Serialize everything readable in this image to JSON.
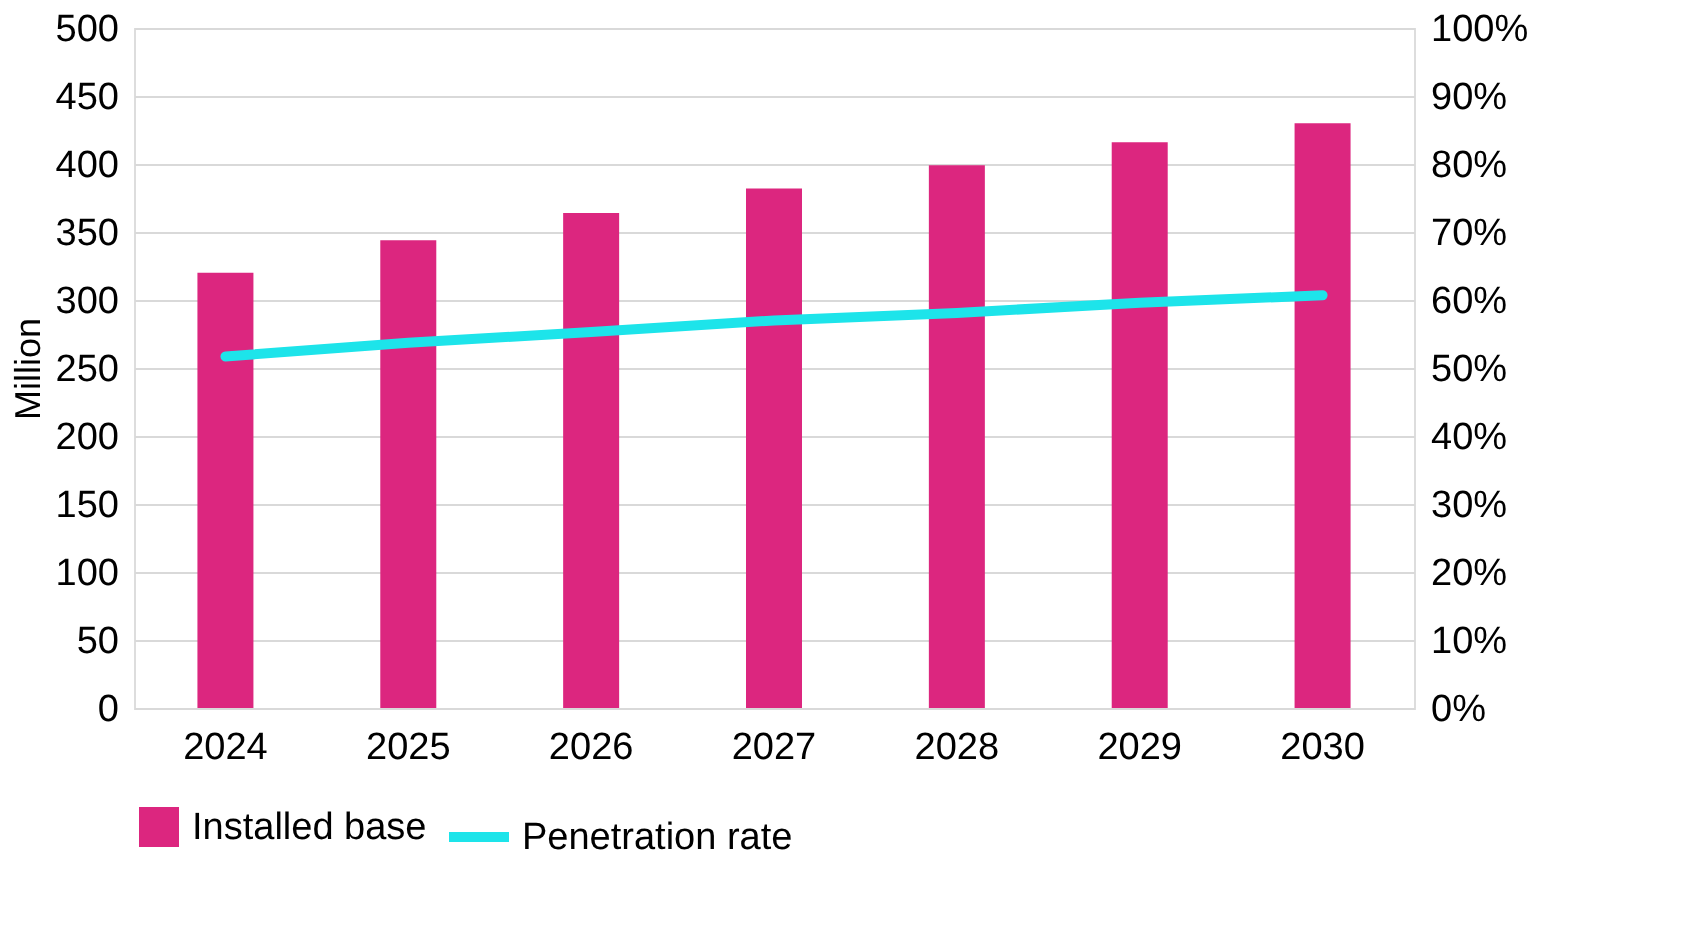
{
  "chart_data": {
    "type": "bar",
    "ylabel": "Million",
    "categories": [
      "2024",
      "2025",
      "2026",
      "2027",
      "2028",
      "2029",
      "2030"
    ],
    "series": [
      {
        "name": "Installed base",
        "color": "#dc267f",
        "values": [
          320,
          344,
          364,
          382,
          399,
          416,
          430
        ]
      },
      {
        "name": "Penetration rate",
        "type": "line",
        "axis": "y2",
        "color": "#1de4ea",
        "values": [
          51.7,
          53.7,
          55.3,
          57.0,
          58.1,
          59.6,
          60.7
        ]
      }
    ],
    "ylim": [
      0,
      500
    ],
    "yticks": [
      0,
      50,
      100,
      150,
      200,
      250,
      300,
      350,
      400,
      450,
      500
    ],
    "y2lim": [
      0,
      100
    ],
    "y2ticks": [
      {
        "value": 0,
        "label": "0%"
      },
      {
        "value": 10,
        "label": "10%"
      },
      {
        "value": 20,
        "label": "20%"
      },
      {
        "value": 30,
        "label": "30%"
      },
      {
        "value": 40,
        "label": "40%"
      },
      {
        "value": 50,
        "label": "50%"
      },
      {
        "value": 60,
        "label": "60%"
      },
      {
        "value": 70,
        "label": "70%"
      },
      {
        "value": 80,
        "label": "80%"
      },
      {
        "value": 90,
        "label": "90%"
      },
      {
        "value": 100,
        "label": "100%"
      }
    ],
    "grid": "y",
    "legend": "bottom",
    "line_style": "solid",
    "marker": "none"
  }
}
